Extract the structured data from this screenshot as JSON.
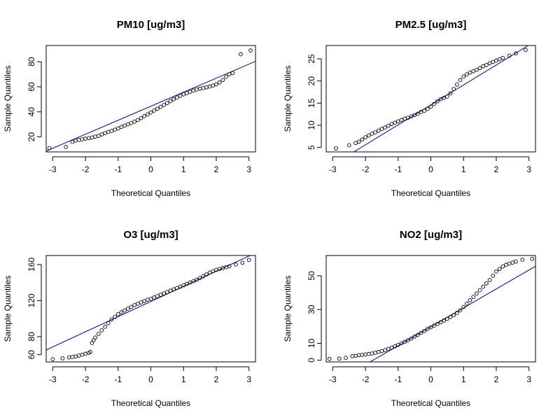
{
  "chart_data": [
    {
      "type": "scatter",
      "title": "PM10 [ug/m3]",
      "xlabel": "Theoretical Quantiles",
      "ylabel": "Sample Quantiles",
      "xticks": [
        -3,
        -2,
        -1,
        0,
        1,
        2,
        3
      ],
      "yticks": [
        20,
        40,
        60,
        80
      ],
      "xlim": [
        -3.2,
        3.2
      ],
      "ylim": [
        8,
        93
      ],
      "ref_line": {
        "intercept": 44.5,
        "slope": 11.2
      },
      "colors": {
        "points": "#000000",
        "line": "#00008b"
      },
      "points": [
        [
          -3.1,
          11
        ],
        [
          -2.6,
          12
        ],
        [
          -2.4,
          16
        ],
        [
          -2.3,
          17
        ],
        [
          -2.2,
          17.6
        ],
        [
          -2.1,
          18
        ],
        [
          -2.0,
          18.6
        ],
        [
          -1.9,
          19
        ],
        [
          -1.8,
          19.5
        ],
        [
          -1.7,
          20.2
        ],
        [
          -1.6,
          20.8
        ],
        [
          -1.5,
          22
        ],
        [
          -1.4,
          23
        ],
        [
          -1.3,
          24
        ],
        [
          -1.2,
          24.8
        ],
        [
          -1.1,
          25.8
        ],
        [
          -1.0,
          26.8
        ],
        [
          -0.9,
          28
        ],
        [
          -0.8,
          29
        ],
        [
          -0.7,
          30
        ],
        [
          -0.6,
          31
        ],
        [
          -0.5,
          32.2
        ],
        [
          -0.4,
          33.4
        ],
        [
          -0.3,
          35
        ],
        [
          -0.2,
          36.5
        ],
        [
          -0.1,
          38
        ],
        [
          0.0,
          39.5
        ],
        [
          0.1,
          41
        ],
        [
          0.2,
          42.5
        ],
        [
          0.3,
          44
        ],
        [
          0.4,
          45.5
        ],
        [
          0.5,
          47
        ],
        [
          0.6,
          48.5
        ],
        [
          0.7,
          50
        ],
        [
          0.8,
          51.5
        ],
        [
          0.9,
          52.8
        ],
        [
          1.0,
          54
        ],
        [
          1.1,
          55
        ],
        [
          1.2,
          56
        ],
        [
          1.3,
          57
        ],
        [
          1.4,
          57.8
        ],
        [
          1.5,
          58.5
        ],
        [
          1.6,
          59
        ],
        [
          1.7,
          59.6
        ],
        [
          1.8,
          60.2
        ],
        [
          1.9,
          61
        ],
        [
          2.0,
          62
        ],
        [
          2.1,
          63.5
        ],
        [
          2.2,
          65.5
        ],
        [
          2.3,
          68
        ],
        [
          2.4,
          70
        ],
        [
          2.5,
          71
        ],
        [
          2.75,
          86
        ],
        [
          3.05,
          89
        ]
      ]
    },
    {
      "type": "scatter",
      "title": "PM2.5 [ug/m3]",
      "xlabel": "Theoretical Quantiles",
      "ylabel": "Sample Quantiles",
      "xticks": [
        -3,
        -2,
        -1,
        0,
        1,
        2,
        3
      ],
      "yticks": [
        5,
        10,
        15,
        20,
        25
      ],
      "xlim": [
        -3.2,
        3.2
      ],
      "ylim": [
        4,
        28
      ],
      "ref_line": {
        "intercept": 14.6,
        "slope": 4.5
      },
      "colors": {
        "points": "#000000",
        "line": "#00008b"
      },
      "points": [
        [
          -2.9,
          4.8
        ],
        [
          -2.5,
          5.5
        ],
        [
          -2.3,
          6
        ],
        [
          -2.2,
          6.3
        ],
        [
          -2.1,
          6.8
        ],
        [
          -2.0,
          7.3
        ],
        [
          -1.9,
          7.7
        ],
        [
          -1.8,
          8.1
        ],
        [
          -1.7,
          8.4
        ],
        [
          -1.6,
          8.8
        ],
        [
          -1.5,
          9.2
        ],
        [
          -1.4,
          9.5
        ],
        [
          -1.3,
          9.9
        ],
        [
          -1.2,
          10.3
        ],
        [
          -1.1,
          10.6
        ],
        [
          -1.0,
          10.9
        ],
        [
          -0.9,
          11.2
        ],
        [
          -0.8,
          11.5
        ],
        [
          -0.7,
          11.7
        ],
        [
          -0.6,
          12
        ],
        [
          -0.5,
          12.3
        ],
        [
          -0.4,
          12.6
        ],
        [
          -0.3,
          13
        ],
        [
          -0.2,
          13.3
        ],
        [
          -0.1,
          13.7
        ],
        [
          0.0,
          14.2
        ],
        [
          0.1,
          14.8
        ],
        [
          0.2,
          15.4
        ],
        [
          0.3,
          15.9
        ],
        [
          0.4,
          16.2
        ],
        [
          0.5,
          16.5
        ],
        [
          0.6,
          17.2
        ],
        [
          0.7,
          18.2
        ],
        [
          0.8,
          19.2
        ],
        [
          0.9,
          20.2
        ],
        [
          1.0,
          21
        ],
        [
          1.1,
          21.5
        ],
        [
          1.2,
          21.9
        ],
        [
          1.3,
          22.2
        ],
        [
          1.4,
          22.5
        ],
        [
          1.5,
          22.9
        ],
        [
          1.6,
          23.3
        ],
        [
          1.7,
          23.6
        ],
        [
          1.8,
          24
        ],
        [
          1.9,
          24.3
        ],
        [
          2.0,
          24.6
        ],
        [
          2.1,
          24.9
        ],
        [
          2.2,
          25.2
        ],
        [
          2.4,
          25.7
        ],
        [
          2.6,
          26.2
        ],
        [
          2.9,
          27
        ]
      ]
    },
    {
      "type": "scatter",
      "title": "O3 [ug/m3]",
      "xlabel": "Theoretical Quantiles",
      "ylabel": "Sample Quantiles",
      "xticks": [
        -3,
        -2,
        -1,
        0,
        1,
        2,
        3
      ],
      "yticks": [
        60,
        80,
        120,
        160
      ],
      "xlim": [
        -3.2,
        3.2
      ],
      "ylim": [
        52,
        170
      ],
      "ref_line": {
        "intercept": 119,
        "slope": 16.8
      },
      "colors": {
        "points": "#000000",
        "line": "#00008b"
      },
      "points": [
        [
          -3.0,
          55
        ],
        [
          -2.7,
          56
        ],
        [
          -2.5,
          57
        ],
        [
          -2.4,
          57.5
        ],
        [
          -2.3,
          58
        ],
        [
          -2.2,
          59
        ],
        [
          -2.1,
          60
        ],
        [
          -2.0,
          61
        ],
        [
          -1.9,
          62
        ],
        [
          -1.85,
          63
        ],
        [
          -1.8,
          73
        ],
        [
          -1.75,
          76
        ],
        [
          -1.7,
          79
        ],
        [
          -1.6,
          83
        ],
        [
          -1.5,
          87
        ],
        [
          -1.4,
          91
        ],
        [
          -1.3,
          95
        ],
        [
          -1.2,
          99
        ],
        [
          -1.1,
          102
        ],
        [
          -1.0,
          105
        ],
        [
          -0.9,
          107
        ],
        [
          -0.8,
          109
        ],
        [
          -0.7,
          111
        ],
        [
          -0.6,
          113
        ],
        [
          -0.5,
          115
        ],
        [
          -0.4,
          116.5
        ],
        [
          -0.3,
          118
        ],
        [
          -0.2,
          119.5
        ],
        [
          -0.1,
          121
        ],
        [
          0.0,
          122
        ],
        [
          0.1,
          123.5
        ],
        [
          0.2,
          125
        ],
        [
          0.3,
          126.5
        ],
        [
          0.4,
          128
        ],
        [
          0.5,
          129.5
        ],
        [
          0.6,
          131
        ],
        [
          0.7,
          132.5
        ],
        [
          0.8,
          134
        ],
        [
          0.9,
          135.5
        ],
        [
          1.0,
          137
        ],
        [
          1.1,
          138.5
        ],
        [
          1.2,
          140
        ],
        [
          1.3,
          141.5
        ],
        [
          1.4,
          143
        ],
        [
          1.5,
          145
        ],
        [
          1.6,
          147
        ],
        [
          1.7,
          149
        ],
        [
          1.8,
          151
        ],
        [
          1.9,
          152.5
        ],
        [
          2.0,
          154
        ],
        [
          2.1,
          155
        ],
        [
          2.2,
          156
        ],
        [
          2.3,
          157
        ],
        [
          2.4,
          158
        ],
        [
          2.6,
          160
        ],
        [
          2.8,
          162
        ],
        [
          3.0,
          165
        ]
      ]
    },
    {
      "type": "scatter",
      "title": "NO2 [ug/m3]",
      "xlabel": "Theoretical Quantiles",
      "ylabel": "Sample Quantiles",
      "xticks": [
        -3,
        -2,
        -1,
        0,
        1,
        2,
        3
      ],
      "yticks": [
        0,
        10,
        30,
        50
      ],
      "xlim": [
        -3.2,
        3.2
      ],
      "ylim": [
        -1,
        62
      ],
      "ref_line": {
        "intercept": 19.8,
        "slope": 11.2
      },
      "colors": {
        "points": "#000000",
        "line": "#00008b"
      },
      "points": [
        [
          -3.1,
          0.8
        ],
        [
          -2.8,
          1
        ],
        [
          -2.6,
          1.4
        ],
        [
          -2.4,
          2.4
        ],
        [
          -2.3,
          2.6
        ],
        [
          -2.2,
          3
        ],
        [
          -2.1,
          3.2
        ],
        [
          -2.0,
          3.4
        ],
        [
          -1.9,
          3.7
        ],
        [
          -1.8,
          4
        ],
        [
          -1.7,
          4.4
        ],
        [
          -1.6,
          4.9
        ],
        [
          -1.5,
          5.4
        ],
        [
          -1.4,
          6
        ],
        [
          -1.3,
          6.7
        ],
        [
          -1.2,
          7.4
        ],
        [
          -1.1,
          8.2
        ],
        [
          -1.0,
          9.1
        ],
        [
          -0.9,
          10
        ],
        [
          -0.8,
          10.8
        ],
        [
          -0.7,
          11.8
        ],
        [
          -0.6,
          12.8
        ],
        [
          -0.5,
          14
        ],
        [
          -0.4,
          15
        ],
        [
          -0.3,
          16.2
        ],
        [
          -0.2,
          17.3
        ],
        [
          -0.1,
          18.5
        ],
        [
          0.0,
          19.5
        ],
        [
          0.1,
          20.5
        ],
        [
          0.2,
          21.5
        ],
        [
          0.3,
          22.5
        ],
        [
          0.4,
          23.5
        ],
        [
          0.5,
          24.5
        ],
        [
          0.6,
          25.6
        ],
        [
          0.7,
          26.7
        ],
        [
          0.8,
          28
        ],
        [
          0.9,
          29.5
        ],
        [
          1.0,
          31.5
        ],
        [
          1.1,
          33.5
        ],
        [
          1.2,
          35.5
        ],
        [
          1.3,
          37.5
        ],
        [
          1.4,
          39.5
        ],
        [
          1.5,
          41.5
        ],
        [
          1.6,
          43.5
        ],
        [
          1.7,
          45.5
        ],
        [
          1.8,
          47.5
        ],
        [
          1.9,
          50
        ],
        [
          2.0,
          52.5
        ],
        [
          2.1,
          54
        ],
        [
          2.2,
          55.5
        ],
        [
          2.3,
          56.5
        ],
        [
          2.4,
          57.2
        ],
        [
          2.5,
          57.8
        ],
        [
          2.6,
          58.4
        ],
        [
          2.8,
          59.5
        ],
        [
          3.1,
          60
        ]
      ]
    }
  ]
}
